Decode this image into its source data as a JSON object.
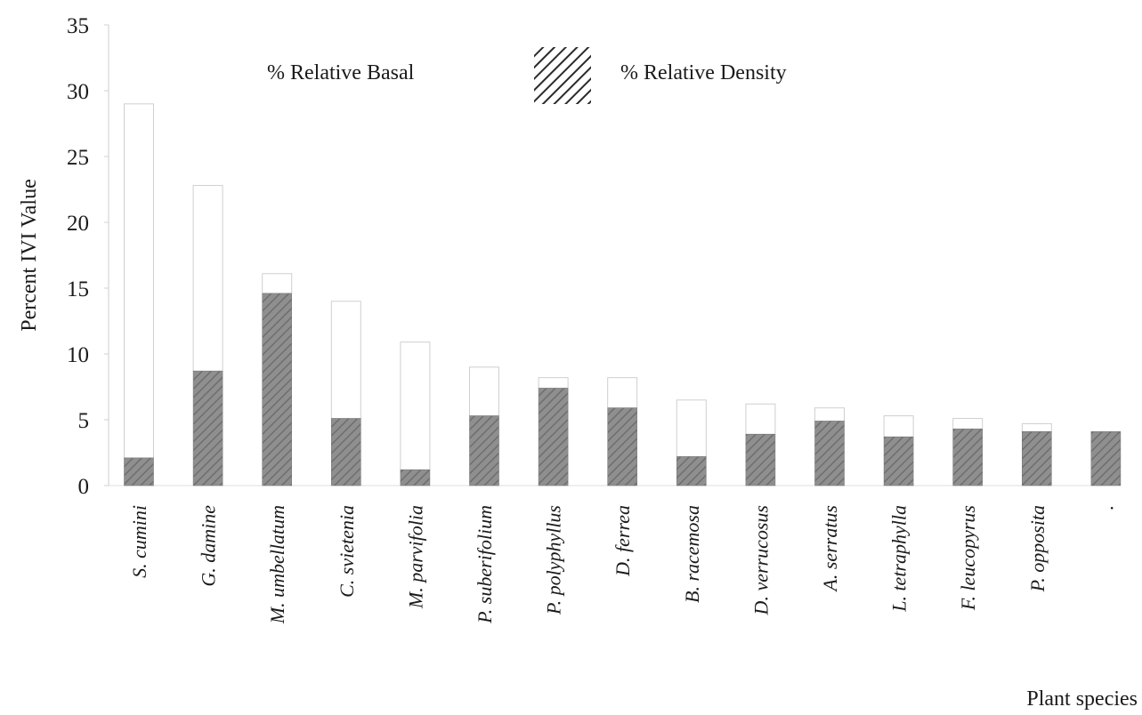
{
  "chart_data": {
    "type": "bar",
    "stacked": true,
    "title": "",
    "xlabel": "Plant species",
    "ylabel": "Percent IVI Value",
    "ylim": [
      0,
      35
    ],
    "yticks": [
      0,
      5,
      10,
      15,
      20,
      25,
      30,
      35
    ],
    "grid": false,
    "legend_placement": "top",
    "categories": [
      "S. cumini",
      "G. damine",
      "M. umbellatum",
      "C. svietenia",
      "M. parvifolia",
      "P. suberifolium",
      "P. polyphyllus",
      "D. ferrea",
      "B. racemosa",
      "D. verrucosus",
      "A. serratus",
      "L. tetraphylla",
      "F. leucopyrus",
      "P. opposita",
      "."
    ],
    "series": [
      {
        "name": "% Relative Density",
        "pattern": "hatched",
        "color": "#8a8a8a",
        "values": [
          2.1,
          8.7,
          14.6,
          5.1,
          1.2,
          5.3,
          7.4,
          5.9,
          2.2,
          3.9,
          4.9,
          3.7,
          4.3,
          4.1,
          4.1
        ]
      },
      {
        "name": "% Relative Basal",
        "pattern": "open",
        "color": "#ffffff",
        "values": [
          26.9,
          14.1,
          1.5,
          8.9,
          9.7,
          3.7,
          0.8,
          2.3,
          4.3,
          2.3,
          1.0,
          1.6,
          0.8,
          0.6,
          0.0
        ]
      }
    ]
  },
  "colors": {
    "bar_fill": "#8a8a8a",
    "bar_open_stroke": "#d8d8d8",
    "text": "#1a1a1a"
  }
}
